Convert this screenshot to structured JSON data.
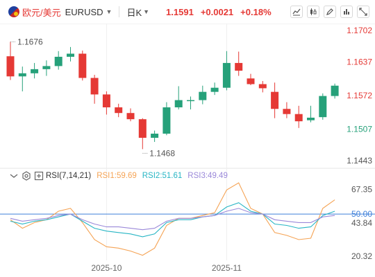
{
  "header": {
    "pair_cn": "欧元/美元",
    "symbol": "EURUSD",
    "period": "日K",
    "price": "1.1591",
    "change": "+0.0021",
    "change_pct": "+0.18%",
    "tools": [
      "line-chart-icon",
      "candle-style-icon",
      "draw-pen-icon",
      "indicator-icon",
      "fullscreen-icon"
    ]
  },
  "colors": {
    "up": "#26a17a",
    "down": "#e53935",
    "rsi1": "#f5a354",
    "rsi2": "#26b5c4",
    "rsi3": "#9a88d9",
    "hline": "#3d7fd9"
  },
  "rsi_header": {
    "name": "RSI(7,14,21)",
    "rsi1": "RSI1:59.69",
    "rsi2": "RSI2:51.61",
    "rsi3": "RSI3:49.49"
  },
  "chart_data": [
    {
      "type": "candlestick",
      "title": "",
      "ylim": [
        1.1443,
        1.1702
      ],
      "yticks": [
        "1.1702",
        "1.1637",
        "1.1572",
        "1.1507",
        "1.1443"
      ],
      "high_label": "1.1676",
      "low_label": "1.1468",
      "xticks": [
        {
          "index": 8,
          "label": "2025-10"
        },
        {
          "index": 18,
          "label": "2025-11"
        }
      ],
      "candles": [
        {
          "o": 1.1648,
          "h": 1.1676,
          "l": 1.1602,
          "c": 1.1609
        },
        {
          "o": 1.1609,
          "h": 1.1628,
          "l": 1.158,
          "c": 1.1615
        },
        {
          "o": 1.1615,
          "h": 1.1635,
          "l": 1.1605,
          "c": 1.1623
        },
        {
          "o": 1.1623,
          "h": 1.164,
          "l": 1.161,
          "c": 1.1629
        },
        {
          "o": 1.1629,
          "h": 1.1658,
          "l": 1.1622,
          "c": 1.1647
        },
        {
          "o": 1.1647,
          "h": 1.1666,
          "l": 1.1638,
          "c": 1.1653
        },
        {
          "o": 1.1653,
          "h": 1.1659,
          "l": 1.1601,
          "c": 1.1606
        },
        {
          "o": 1.1606,
          "h": 1.1612,
          "l": 1.1556,
          "c": 1.1574
        },
        {
          "o": 1.1574,
          "h": 1.158,
          "l": 1.1535,
          "c": 1.1549
        },
        {
          "o": 1.1549,
          "h": 1.1556,
          "l": 1.153,
          "c": 1.1538
        },
        {
          "o": 1.1538,
          "h": 1.1547,
          "l": 1.1522,
          "c": 1.1526
        },
        {
          "o": 1.1526,
          "h": 1.1528,
          "l": 1.1468,
          "c": 1.149
        },
        {
          "o": 1.149,
          "h": 1.1504,
          "l": 1.1482,
          "c": 1.1498
        },
        {
          "o": 1.1498,
          "h": 1.1559,
          "l": 1.1495,
          "c": 1.1549
        },
        {
          "o": 1.1549,
          "h": 1.159,
          "l": 1.1545,
          "c": 1.1563
        },
        {
          "o": 1.1563,
          "h": 1.157,
          "l": 1.1545,
          "c": 1.1563
        },
        {
          "o": 1.1563,
          "h": 1.1591,
          "l": 1.1555,
          "c": 1.1579
        },
        {
          "o": 1.1579,
          "h": 1.1597,
          "l": 1.1573,
          "c": 1.1587
        },
        {
          "o": 1.1587,
          "h": 1.1658,
          "l": 1.1582,
          "c": 1.1635
        },
        {
          "o": 1.1635,
          "h": 1.1657,
          "l": 1.161,
          "c": 1.162
        },
        {
          "o": 1.1605,
          "h": 1.1614,
          "l": 1.1592,
          "c": 1.1594
        },
        {
          "o": 1.1594,
          "h": 1.16,
          "l": 1.1578,
          "c": 1.1586
        },
        {
          "o": 1.1579,
          "h": 1.1597,
          "l": 1.1528,
          "c": 1.1546
        },
        {
          "o": 1.1546,
          "h": 1.1559,
          "l": 1.1528,
          "c": 1.1536
        },
        {
          "o": 1.1536,
          "h": 1.1552,
          "l": 1.1509,
          "c": 1.1522
        },
        {
          "o": 1.1524,
          "h": 1.1552,
          "l": 1.152,
          "c": 1.1529
        },
        {
          "o": 1.153,
          "h": 1.1576,
          "l": 1.1525,
          "c": 1.1571
        },
        {
          "o": 1.1571,
          "h": 1.1595,
          "l": 1.1566,
          "c": 1.1591
        }
      ]
    },
    {
      "type": "line",
      "title": "",
      "ylim": [
        20.32,
        72
      ],
      "yticks": [
        "67.35",
        "50.00",
        "43.84",
        "20.32"
      ],
      "hline": 50,
      "series": [
        {
          "name": "RSI1",
          "values": [
            46,
            40,
            44,
            46,
            52,
            54,
            44,
            32,
            27,
            26,
            24,
            21,
            26,
            42,
            47,
            47,
            49,
            51,
            67,
            72,
            54,
            50,
            37,
            35,
            32,
            33,
            54,
            60
          ]
        },
        {
          "name": "RSI2",
          "values": [
            45,
            43,
            45,
            46,
            48,
            50,
            45,
            40,
            38,
            37,
            36,
            34,
            36,
            44,
            46,
            46,
            48,
            49,
            55,
            58,
            52,
            50,
            43,
            42,
            40,
            41,
            49,
            52
          ]
        },
        {
          "name": "RSI3",
          "values": [
            47,
            45,
            46,
            47,
            49,
            50,
            46,
            43,
            41,
            41,
            40,
            39,
            40,
            45,
            47,
            47,
            48,
            49,
            52,
            54,
            51,
            50,
            46,
            45,
            44,
            44,
            48,
            49
          ]
        }
      ]
    }
  ]
}
